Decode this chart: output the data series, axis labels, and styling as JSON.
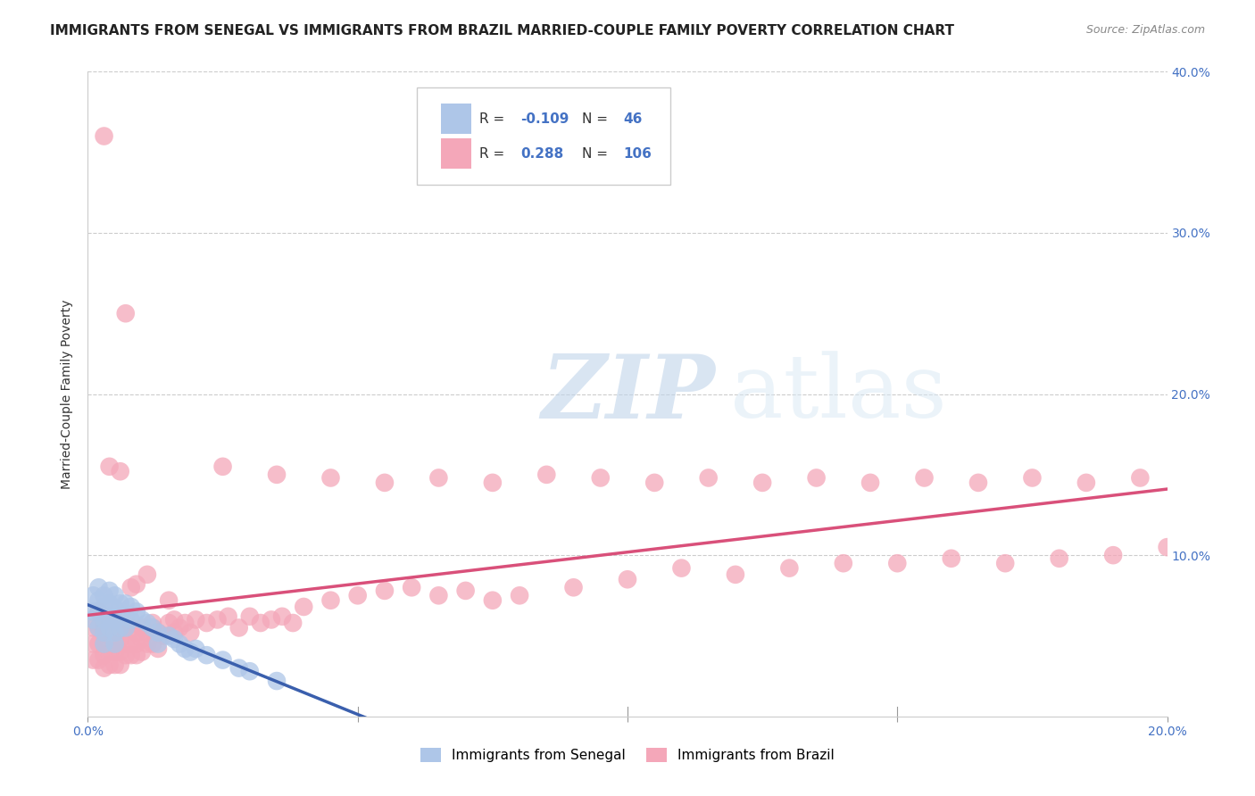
{
  "title": "IMMIGRANTS FROM SENEGAL VS IMMIGRANTS FROM BRAZIL MARRIED-COUPLE FAMILY POVERTY CORRELATION CHART",
  "source": "Source: ZipAtlas.com",
  "ylabel": "Married-Couple Family Poverty",
  "xlim": [
    0.0,
    0.2
  ],
  "ylim": [
    0.0,
    0.4
  ],
  "senegal_color": "#aec6e8",
  "brazil_color": "#f4a7b9",
  "senegal_line_color": "#3a5fad",
  "brazil_line_color": "#d9507a",
  "dashed_line_color": "#8ab0d8",
  "legend_R_senegal": "-0.109",
  "legend_N_senegal": "46",
  "legend_R_brazil": "0.288",
  "legend_N_brazil": "106",
  "legend_label_senegal": "Immigrants from Senegal",
  "legend_label_brazil": "Immigrants from Brazil",
  "watermark_zip": "ZIP",
  "watermark_atlas": "atlas",
  "background_color": "#ffffff",
  "grid_color": "#cccccc",
  "title_fontsize": 11,
  "senegal_x": [
    0.001,
    0.001,
    0.001,
    0.002,
    0.002,
    0.002,
    0.002,
    0.003,
    0.003,
    0.003,
    0.003,
    0.003,
    0.004,
    0.004,
    0.004,
    0.004,
    0.005,
    0.005,
    0.005,
    0.005,
    0.005,
    0.006,
    0.006,
    0.006,
    0.007,
    0.007,
    0.007,
    0.008,
    0.008,
    0.009,
    0.01,
    0.011,
    0.012,
    0.013,
    0.013,
    0.015,
    0.016,
    0.017,
    0.018,
    0.019,
    0.02,
    0.022,
    0.025,
    0.028,
    0.03,
    0.035
  ],
  "senegal_y": [
    0.075,
    0.065,
    0.06,
    0.08,
    0.072,
    0.065,
    0.055,
    0.075,
    0.068,
    0.06,
    0.052,
    0.045,
    0.078,
    0.07,
    0.062,
    0.055,
    0.075,
    0.067,
    0.06,
    0.052,
    0.045,
    0.07,
    0.062,
    0.055,
    0.07,
    0.062,
    0.055,
    0.068,
    0.06,
    0.065,
    0.06,
    0.058,
    0.055,
    0.052,
    0.045,
    0.05,
    0.048,
    0.045,
    0.042,
    0.04,
    0.042,
    0.038,
    0.035,
    0.03,
    0.028,
    0.022
  ],
  "brazil_x": [
    0.001,
    0.001,
    0.001,
    0.002,
    0.002,
    0.002,
    0.002,
    0.003,
    0.003,
    0.003,
    0.003,
    0.004,
    0.004,
    0.004,
    0.004,
    0.005,
    0.005,
    0.005,
    0.005,
    0.006,
    0.006,
    0.006,
    0.006,
    0.007,
    0.007,
    0.007,
    0.008,
    0.008,
    0.008,
    0.009,
    0.009,
    0.009,
    0.01,
    0.01,
    0.01,
    0.011,
    0.011,
    0.012,
    0.012,
    0.013,
    0.013,
    0.014,
    0.015,
    0.016,
    0.017,
    0.018,
    0.019,
    0.02,
    0.022,
    0.024,
    0.026,
    0.028,
    0.03,
    0.032,
    0.034,
    0.036,
    0.038,
    0.04,
    0.045,
    0.05,
    0.055,
    0.06,
    0.065,
    0.07,
    0.075,
    0.08,
    0.09,
    0.1,
    0.11,
    0.12,
    0.13,
    0.14,
    0.15,
    0.16,
    0.17,
    0.18,
    0.19,
    0.2,
    0.025,
    0.035,
    0.045,
    0.055,
    0.065,
    0.075,
    0.085,
    0.095,
    0.105,
    0.115,
    0.125,
    0.135,
    0.145,
    0.155,
    0.165,
    0.175,
    0.185,
    0.195,
    0.008,
    0.004,
    0.006,
    0.009,
    0.012,
    0.016,
    0.003,
    0.007,
    0.011,
    0.015
  ],
  "brazil_y": [
    0.055,
    0.045,
    0.035,
    0.065,
    0.055,
    0.045,
    0.035,
    0.055,
    0.045,
    0.038,
    0.03,
    0.06,
    0.05,
    0.04,
    0.032,
    0.058,
    0.048,
    0.04,
    0.032,
    0.055,
    0.048,
    0.04,
    0.032,
    0.055,
    0.045,
    0.038,
    0.055,
    0.045,
    0.038,
    0.052,
    0.045,
    0.038,
    0.055,
    0.048,
    0.04,
    0.052,
    0.045,
    0.055,
    0.045,
    0.052,
    0.042,
    0.05,
    0.058,
    0.052,
    0.055,
    0.058,
    0.052,
    0.06,
    0.058,
    0.06,
    0.062,
    0.055,
    0.062,
    0.058,
    0.06,
    0.062,
    0.058,
    0.068,
    0.072,
    0.075,
    0.078,
    0.08,
    0.075,
    0.078,
    0.072,
    0.075,
    0.08,
    0.085,
    0.092,
    0.088,
    0.092,
    0.095,
    0.095,
    0.098,
    0.095,
    0.098,
    0.1,
    0.105,
    0.155,
    0.15,
    0.148,
    0.145,
    0.148,
    0.145,
    0.15,
    0.148,
    0.145,
    0.148,
    0.145,
    0.148,
    0.145,
    0.148,
    0.145,
    0.148,
    0.145,
    0.148,
    0.08,
    0.155,
    0.152,
    0.082,
    0.058,
    0.06,
    0.36,
    0.25,
    0.088,
    0.072
  ]
}
